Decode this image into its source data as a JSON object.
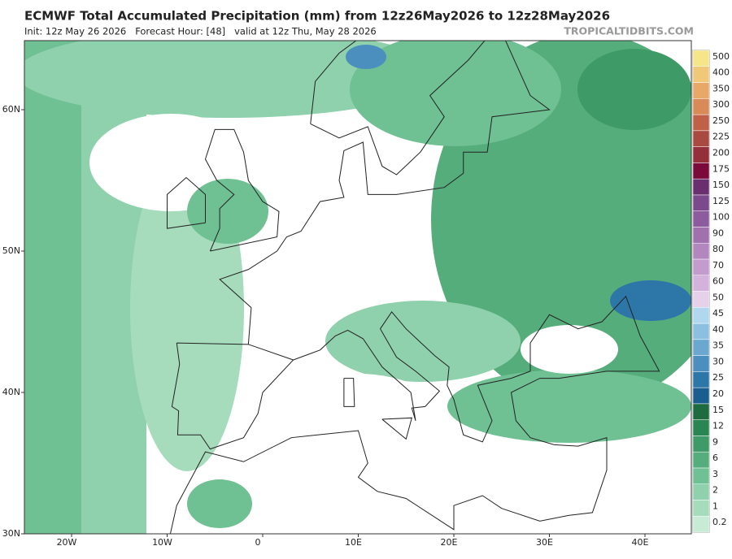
{
  "header": {
    "title": "ECMWF Total Accumulated Precipitation (mm) from 12z26May2026 to 12z28May2026",
    "subtitle": "Init: 12z May 26 2026   Forecast Hour: [48]   valid at 12z Thu, May 28 2026",
    "brand": "TROPICALTIDBITS.COM"
  },
  "map": {
    "lat_labels": [
      "60N",
      "50N",
      "40N",
      "30N"
    ],
    "lon_labels": [
      "20W",
      "10W",
      "0",
      "10E",
      "20E",
      "30E",
      "40E"
    ]
  },
  "colorbar": {
    "levels": [
      {
        "label": "0.2",
        "color": "#c8ebd6"
      },
      {
        "label": "1",
        "color": "#a6dcbc"
      },
      {
        "label": "2",
        "color": "#8fd1ad"
      },
      {
        "label": "3",
        "color": "#6fc093"
      },
      {
        "label": "6",
        "color": "#55ad7b"
      },
      {
        "label": "9",
        "color": "#3e9a66"
      },
      {
        "label": "12",
        "color": "#2a8552"
      },
      {
        "label": "15",
        "color": "#1d6b3e"
      },
      {
        "label": "20",
        "color": "#1a5e8f"
      },
      {
        "label": "25",
        "color": "#2d76a8"
      },
      {
        "label": "30",
        "color": "#4a8fbd"
      },
      {
        "label": "35",
        "color": "#6aa8d0"
      },
      {
        "label": "40",
        "color": "#8cc0e0"
      },
      {
        "label": "45",
        "color": "#b0d7ee"
      },
      {
        "label": "50",
        "color": "#e6d0ea"
      },
      {
        "label": "60",
        "color": "#d3b3dc"
      },
      {
        "label": "70",
        "color": "#c29ccd"
      },
      {
        "label": "80",
        "color": "#b187be"
      },
      {
        "label": "90",
        "color": "#9f72ae"
      },
      {
        "label": "100",
        "color": "#8c5c9e"
      },
      {
        "label": "125",
        "color": "#7a4a8c"
      },
      {
        "label": "150",
        "color": "#6a2f6e"
      },
      {
        "label": "175",
        "color": "#7a0a3a"
      },
      {
        "label": "200",
        "color": "#94303a"
      },
      {
        "label": "225",
        "color": "#a84a40"
      },
      {
        "label": "250",
        "color": "#c06048"
      },
      {
        "label": "300",
        "color": "#d88a58"
      },
      {
        "label": "350",
        "color": "#e8a868"
      },
      {
        "label": "400",
        "color": "#f0c878"
      },
      {
        "label": "500",
        "color": "#f5e68a"
      }
    ]
  }
}
